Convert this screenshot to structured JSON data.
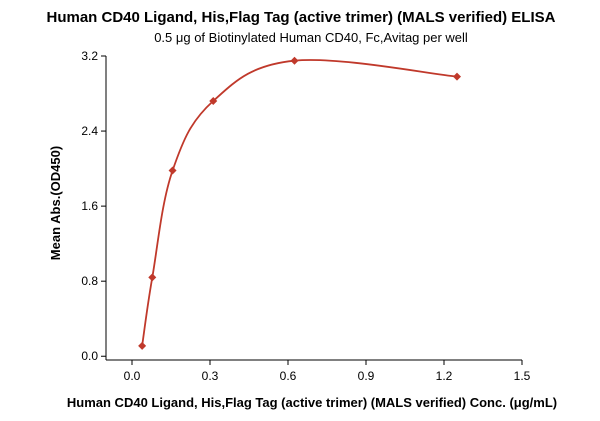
{
  "chart_data": {
    "type": "scatter",
    "title": "Human CD40 Ligand, His,Flag Tag (active trimer) (MALS verified) ELISA",
    "subtitle": "0.5 μg of Biotinylated Human CD40, Fc,Avitag per well",
    "xlabel": "Human CD40 Ligand, His,Flag Tag (active trimer) (MALS verified) Conc. (μg/mL)",
    "ylabel": "Mean Abs.(OD450)",
    "xlim": [
      -0.1,
      1.5
    ],
    "ylim": [
      -0.04,
      3.2
    ],
    "xticks": [
      0.0,
      0.3,
      0.6,
      0.9,
      1.2,
      1.5
    ],
    "xtick_labels": [
      "0.0",
      "0.3",
      "0.6",
      "0.9",
      "1.2",
      "1.5"
    ],
    "yticks": [
      0.0,
      0.8,
      1.6,
      2.4,
      3.2
    ],
    "ytick_labels": [
      "0.0",
      "0.8",
      "1.6",
      "2.4",
      "3.2"
    ],
    "grid": false,
    "color": "#c0392b",
    "series": [
      {
        "x": [
          0.039,
          0.078,
          0.156,
          0.3125,
          0.625,
          1.25
        ],
        "y": [
          0.11,
          0.84,
          1.98,
          2.72,
          3.15,
          2.98
        ],
        "fit": "smooth-curve"
      }
    ]
  }
}
